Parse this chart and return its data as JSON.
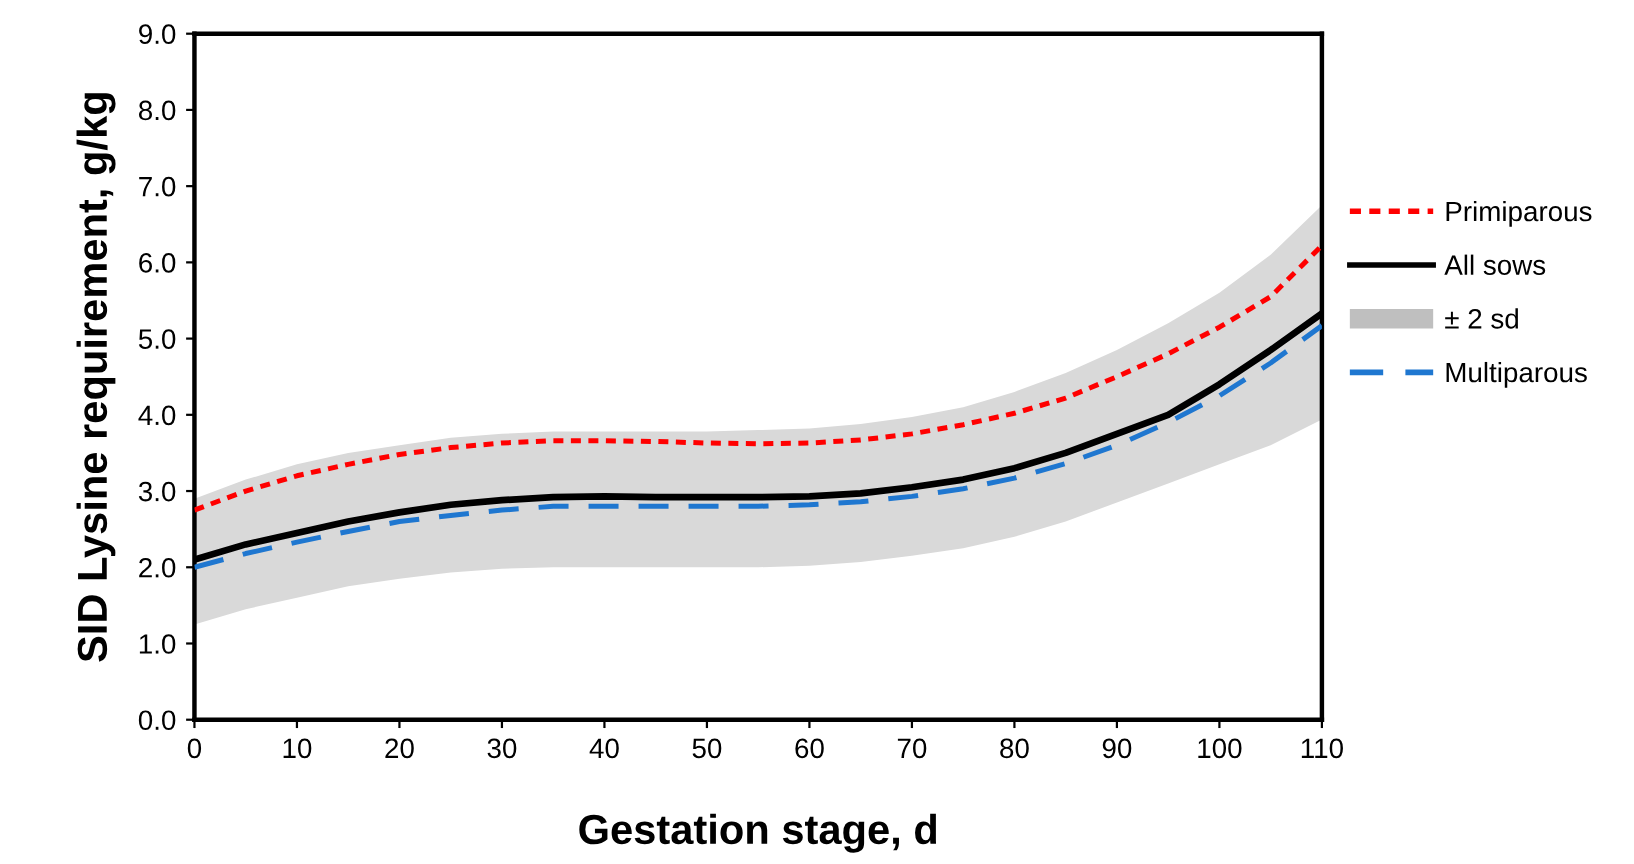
{
  "chart_data": {
    "type": "line",
    "xlabel": "Gestation stage, d",
    "ylabel": "SID Lysine requirement, g/kg",
    "x": [
      0,
      5,
      10,
      15,
      20,
      25,
      30,
      35,
      40,
      45,
      50,
      55,
      60,
      65,
      70,
      75,
      80,
      85,
      90,
      95,
      100,
      105,
      110
    ],
    "series": [
      {
        "name": "Primiparous",
        "color": "#ff0000",
        "line_style": "dotted",
        "values": [
          2.75,
          3.0,
          3.2,
          3.35,
          3.48,
          3.57,
          3.63,
          3.66,
          3.66,
          3.65,
          3.63,
          3.62,
          3.63,
          3.67,
          3.75,
          3.87,
          4.02,
          4.22,
          4.5,
          4.8,
          5.15,
          5.55,
          6.22
        ]
      },
      {
        "name": "All sows",
        "color": "#000000",
        "line_style": "solid",
        "values": [
          2.1,
          2.3,
          2.45,
          2.6,
          2.72,
          2.82,
          2.88,
          2.92,
          2.93,
          2.92,
          2.92,
          2.92,
          2.93,
          2.97,
          3.05,
          3.15,
          3.3,
          3.5,
          3.75,
          4.0,
          4.4,
          4.85,
          5.33
        ],
        "lower": [
          1.25,
          1.45,
          1.6,
          1.75,
          1.85,
          1.93,
          1.98,
          2.0,
          2.0,
          2.0,
          2.0,
          2.0,
          2.02,
          2.07,
          2.15,
          2.25,
          2.4,
          2.6,
          2.85,
          3.1,
          3.35,
          3.6,
          3.94
        ],
        "upper": [
          2.9,
          3.15,
          3.35,
          3.5,
          3.6,
          3.7,
          3.75,
          3.78,
          3.78,
          3.78,
          3.78,
          3.8,
          3.82,
          3.88,
          3.97,
          4.1,
          4.3,
          4.55,
          4.85,
          5.2,
          5.6,
          6.1,
          6.75
        ]
      },
      {
        "name": "Multiparous",
        "color": "#1f77d0",
        "line_style": "dashed",
        "values": [
          2.0,
          2.18,
          2.33,
          2.47,
          2.6,
          2.68,
          2.75,
          2.8,
          2.8,
          2.8,
          2.8,
          2.8,
          2.82,
          2.86,
          2.93,
          3.03,
          3.17,
          3.36,
          3.6,
          3.9,
          4.25,
          4.68,
          5.17
        ]
      }
    ],
    "xlim": [
      0,
      110
    ],
    "xticks": [
      0,
      10,
      20,
      30,
      40,
      50,
      60,
      70,
      80,
      90,
      100,
      110
    ],
    "ylim": [
      0,
      9
    ],
    "yticks": [
      {
        "value": 0,
        "label": "0.0"
      },
      {
        "value": 1,
        "label": "1.0"
      },
      {
        "value": 2,
        "label": "2.0"
      },
      {
        "value": 3,
        "label": "3.0"
      },
      {
        "value": 4,
        "label": "4.0"
      },
      {
        "value": 5,
        "label": "5.0"
      },
      {
        "value": 6,
        "label": "6.0"
      },
      {
        "value": 7,
        "label": "7.0"
      },
      {
        "value": 8,
        "label": "8.0"
      },
      {
        "value": 9,
        "label": "9.0"
      }
    ],
    "annotations": [
      "± 2 sd"
    ],
    "grid": false,
    "legend": "right",
    "marker": "none"
  }
}
